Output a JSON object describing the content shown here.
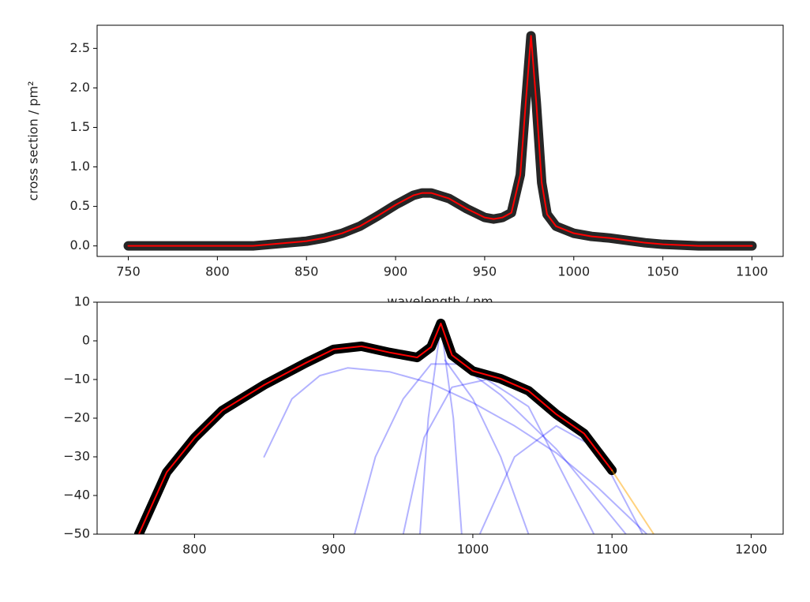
{
  "chart_data": [
    {
      "type": "line",
      "xlabel": "wavelength / nm",
      "ylabel": "cross section / pm²",
      "xlim": [
        732.5,
        1117.5
      ],
      "xticks": [
        750,
        800,
        850,
        900,
        950,
        1000,
        1050,
        1100
      ],
      "ylim": [
        -0.133,
        2.793
      ],
      "yticks": [
        {
          "value": 0,
          "label": "0.0"
        },
        0.5,
        {
          "value": 1,
          "label": "1.0"
        },
        1.5,
        {
          "value": 2,
          "label": "2.0"
        },
        2.5
      ],
      "x": [
        750,
        760,
        770,
        780,
        790,
        800,
        810,
        820,
        830,
        840,
        850,
        860,
        870,
        880,
        890,
        900,
        910,
        915,
        920,
        930,
        940,
        950,
        955,
        960,
        965,
        970,
        973,
        976,
        979,
        982,
        985,
        990,
        1000,
        1010,
        1020,
        1030,
        1040,
        1050,
        1060,
        1070,
        1080,
        1090,
        1100
      ],
      "series": [
        {
          "style": "markers",
          "color": "rgba(0,0,0,0.85)",
          "values": [
            0,
            0,
            0,
            0,
            0,
            0,
            0,
            0,
            0.02,
            0.04,
            0.06,
            0.1,
            0.16,
            0.25,
            0.38,
            0.52,
            0.64,
            0.67,
            0.67,
            0.6,
            0.47,
            0.36,
            0.34,
            0.36,
            0.42,
            0.9,
            1.8,
            2.66,
            1.8,
            0.8,
            0.4,
            0.25,
            0.16,
            0.12,
            0.1,
            0.07,
            0.04,
            0.02,
            0.01,
            0,
            0,
            0,
            0
          ]
        },
        {
          "style": "line",
          "color": "#ff0000",
          "values": [
            0,
            0,
            0,
            0,
            0,
            0,
            0,
            0,
            0.02,
            0.04,
            0.06,
            0.1,
            0.16,
            0.25,
            0.38,
            0.52,
            0.64,
            0.67,
            0.67,
            0.6,
            0.47,
            0.36,
            0.34,
            0.36,
            0.42,
            0.9,
            1.8,
            2.66,
            1.8,
            0.8,
            0.4,
            0.25,
            0.16,
            0.12,
            0.1,
            0.07,
            0.04,
            0.02,
            0.01,
            0,
            0,
            0,
            0
          ]
        }
      ]
    },
    {
      "type": "line",
      "xlim": [
        730,
        1223
      ],
      "xticks": [
        800,
        900,
        1000,
        1100,
        1200
      ],
      "ylim": [
        -50,
        10
      ],
      "yticks": [
        {
          "value": -50,
          "label": "−50"
        },
        {
          "value": -40,
          "label": "−40"
        },
        {
          "value": -30,
          "label": "−30"
        },
        {
          "value": -20,
          "label": "−20"
        },
        {
          "value": -10,
          "label": "−10"
        },
        0,
        10
      ],
      "series": [
        {
          "style": "line",
          "color": "rgba(0,0,255,0.3)",
          "x": [
            850,
            870,
            890,
            910,
            940,
            970,
            1000,
            1030,
            1060,
            1090,
            1125
          ],
          "values": [
            -30,
            -15,
            -9,
            -7,
            -8,
            -11,
            -16,
            -22,
            -29,
            -38,
            -50
          ]
        },
        {
          "style": "line",
          "color": "rgba(0,0,255,0.3)",
          "x": [
            915,
            930,
            950,
            970,
            990,
            1020,
            1060,
            1110
          ],
          "values": [
            -50,
            -30,
            -15,
            -6,
            -6,
            -14,
            -28,
            -50
          ]
        },
        {
          "style": "line",
          "color": "rgba(0,0,255,0.3)",
          "x": [
            962,
            968,
            977,
            986,
            992
          ],
          "values": [
            -50,
            -20,
            4,
            -20,
            -50
          ]
        },
        {
          "style": "line",
          "color": "rgba(0,0,255,0.3)",
          "x": [
            950,
            965,
            985,
            1010,
            1040,
            1087
          ],
          "values": [
            -50,
            -25,
            -12,
            -10,
            -17,
            -50
          ]
        },
        {
          "style": "line",
          "color": "rgba(0,0,255,0.3)",
          "x": [
            1005,
            1030,
            1060,
            1090,
            1122
          ],
          "values": [
            -50,
            -30,
            -22,
            -28,
            -50
          ]
        },
        {
          "style": "line",
          "color": "rgba(0,0,255,0.3)",
          "x": [
            980,
            1000,
            1020,
            1040
          ],
          "values": [
            -5,
            -15,
            -30,
            -50
          ]
        },
        {
          "style": "markers",
          "color": "#000000",
          "x": [
            760,
            780,
            800,
            820,
            850,
            880,
            900,
            920,
            940,
            960,
            970,
            977,
            985,
            1000,
            1020,
            1040,
            1060,
            1080,
            1100
          ],
          "values": [
            -50,
            -34,
            -25.1,
            -18,
            -11.4,
            -5.7,
            -2.2,
            -1.4,
            -3,
            -4.3,
            -1.6,
            4.5,
            -3.7,
            -7.8,
            -9.8,
            -12.9,
            -19,
            -24,
            -33.5
          ]
        },
        {
          "style": "line",
          "color": "#ff0000",
          "x": [
            760,
            780,
            800,
            820,
            850,
            880,
            900,
            920,
            940,
            960,
            970,
            977,
            985,
            1000,
            1020,
            1040,
            1060,
            1080,
            1100
          ],
          "values": [
            -50,
            -34,
            -25.1,
            -18,
            -11.4,
            -5.7,
            -2.2,
            -1.4,
            -3,
            -4.3,
            -1.6,
            4.5,
            -3.7,
            -7.8,
            -9.8,
            -12.9,
            -19,
            -24,
            -33.5
          ]
        },
        {
          "style": "line",
          "color": "rgba(255,165,0,0.5)",
          "x": [
            1100,
            1130
          ],
          "values": [
            -33.5,
            -50
          ]
        }
      ]
    }
  ]
}
